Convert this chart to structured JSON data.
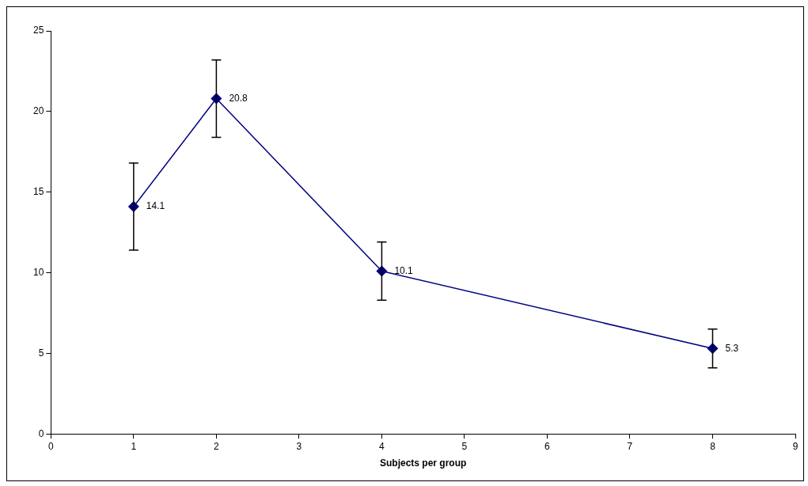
{
  "chart_data": {
    "type": "line",
    "xlabel": "Subjects per group",
    "x": [
      1,
      2,
      4,
      8
    ],
    "series": [
      {
        "color": "#000080",
        "values": [
          14.1,
          20.8,
          10.1,
          5.3
        ],
        "errors": [
          2.7,
          2.4,
          1.8,
          1.2
        ]
      }
    ],
    "xlim": [
      0,
      9
    ],
    "xticks": [
      0,
      1,
      2,
      3,
      4,
      5,
      6,
      7,
      8,
      9
    ],
    "ylim": [
      0,
      25
    ],
    "yticks": [
      0,
      5,
      10,
      15,
      20,
      25
    ],
    "marker": "diamond",
    "line_style": "solid",
    "data_labels": true,
    "legend": false
  }
}
